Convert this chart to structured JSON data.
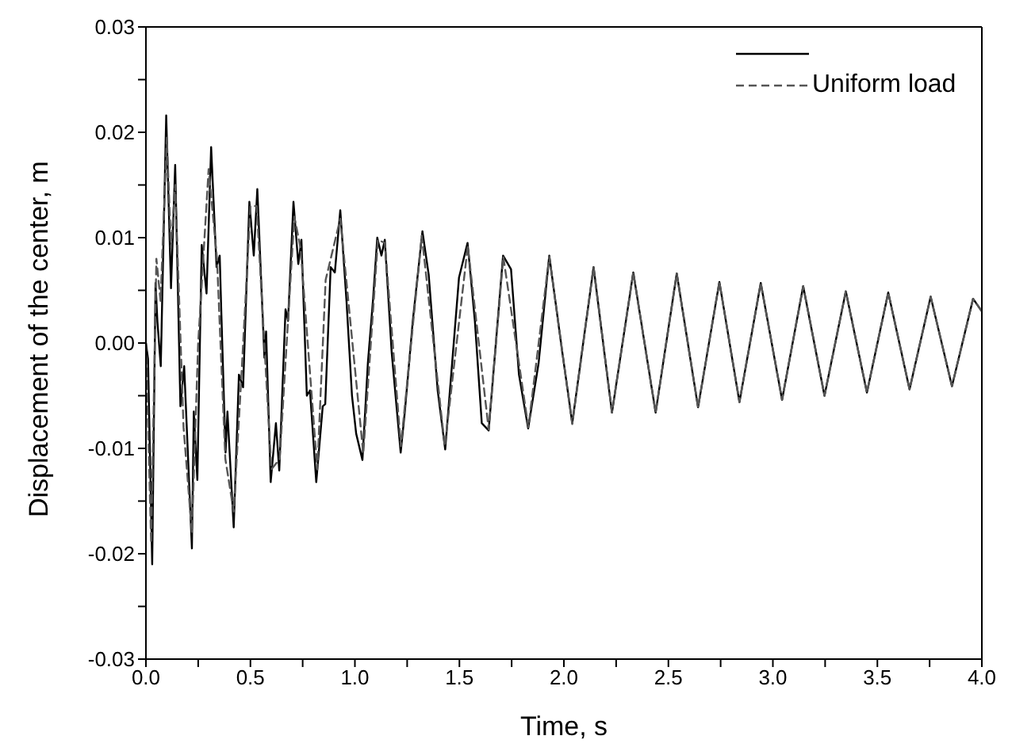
{
  "chart_data": {
    "type": "line",
    "xlabel": "Time, s",
    "ylabel": "Displacement of the center, m",
    "xlim": [
      0,
      4
    ],
    "ylim": [
      -0.03,
      0.03
    ],
    "xticks": [
      {
        "value": 0,
        "label": "0.0"
      },
      {
        "value": 0.25,
        "label": null
      },
      {
        "value": 0.5,
        "label": "0.5"
      },
      {
        "value": 0.75,
        "label": null
      },
      {
        "value": 1,
        "label": "1.0"
      },
      {
        "value": 1.25,
        "label": null
      },
      {
        "value": 1.5,
        "label": "1.5"
      },
      {
        "value": 1.75,
        "label": null
      },
      {
        "value": 2,
        "label": "2.0"
      },
      {
        "value": 2.25,
        "label": null
      },
      {
        "value": 2.5,
        "label": "2.5"
      },
      {
        "value": 2.75,
        "label": null
      },
      {
        "value": 3,
        "label": "3.0"
      },
      {
        "value": 3.25,
        "label": null
      },
      {
        "value": 3.5,
        "label": "3.5"
      },
      {
        "value": 3.75,
        "label": null
      },
      {
        "value": 4,
        "label": "4.0"
      }
    ],
    "yticks": [
      {
        "value": -0.03,
        "label": "-0.03"
      },
      {
        "value": -0.025,
        "label": null
      },
      {
        "value": -0.02,
        "label": "-0.02"
      },
      {
        "value": -0.015,
        "label": null
      },
      {
        "value": -0.01,
        "label": "-0.01"
      },
      {
        "value": -0.005,
        "label": null
      },
      {
        "value": 0,
        "label": "0.00"
      },
      {
        "value": 0.005,
        "label": null
      },
      {
        "value": 0.01,
        "label": "0.01"
      },
      {
        "value": 0.015,
        "label": null
      },
      {
        "value": 0.02,
        "label": "0.02"
      },
      {
        "value": 0.025,
        "label": null
      },
      {
        "value": 0.03,
        "label": "0.03"
      }
    ],
    "grid": false,
    "legend": "top right",
    "marker": "none",
    "series": [
      {
        "color": "#000000",
        "line_style": "solid",
        "x": [
          0,
          0.01,
          0.03,
          0.046,
          0.055,
          0.071,
          0.097,
          0.12,
          0.14,
          0.165,
          0.183,
          0.22,
          0.229,
          0.246,
          0.267,
          0.29,
          0.312,
          0.338,
          0.353,
          0.36,
          0.381,
          0.39,
          0.42,
          0.445,
          0.465,
          0.495,
          0.516,
          0.533,
          0.567,
          0.575,
          0.597,
          0.622,
          0.638,
          0.668,
          0.68,
          0.706,
          0.729,
          0.744,
          0.77,
          0.785,
          0.815,
          0.846,
          0.858,
          0.884,
          0.904,
          0.93,
          0.96,
          0.986,
          1.006,
          1.036,
          1.062,
          1.087,
          1.107,
          1.127,
          1.143,
          1.176,
          1.219,
          1.239,
          1.277,
          1.323,
          1.353,
          1.396,
          1.432,
          1.498,
          1.539,
          1.574,
          1.607,
          1.64,
          1.709,
          1.747,
          1.785,
          1.829,
          1.879,
          1.93,
          1.989,
          2.04,
          2.142,
          2.23,
          2.332,
          2.439,
          2.54,
          2.642,
          2.744,
          2.84,
          2.942,
          3.044,
          3.145,
          3.247,
          3.349,
          3.45,
          3.552,
          3.654,
          3.755,
          3.857,
          3.958,
          4.0
        ],
        "values": [
          0,
          -0.0015,
          -0.021,
          0.0057,
          0.002,
          -0.0022,
          0.0216,
          0.0052,
          0.0169,
          -0.006,
          -0.0022,
          -0.0195,
          -0.0065,
          -0.013,
          0.0093,
          0.0047,
          0.0186,
          0.0072,
          0.0083,
          0.0034,
          -0.0104,
          -0.0065,
          -0.0175,
          -0.003,
          -0.0042,
          0.0134,
          0.0083,
          0.0146,
          -0.0014,
          0.0011,
          -0.0132,
          -0.0076,
          -0.0121,
          0.0032,
          0.0021,
          0.0134,
          0.0075,
          0.0098,
          -0.005,
          -0.0045,
          -0.0132,
          -0.006,
          -0.0058,
          0.0072,
          0.0067,
          0.0126,
          0.0039,
          -0.005,
          -0.0086,
          -0.0111,
          -0.0019,
          0.0042,
          0.01,
          0.0083,
          0.0098,
          -0.0009,
          -0.0104,
          -0.0065,
          0.0021,
          0.0106,
          0.0065,
          -0.0045,
          -0.0101,
          0.0062,
          0.0095,
          0.0021,
          -0.0076,
          -0.0083,
          0.0083,
          0.007,
          -0.003,
          -0.0081,
          -0.0019,
          0.0083,
          -0.0004,
          -0.0076,
          0.0072,
          -0.0066,
          0.0067,
          -0.0066,
          0.0066,
          -0.0061,
          0.0058,
          -0.0056,
          0.0057,
          -0.0054,
          0.0054,
          -0.005,
          0.0049,
          -0.0047,
          0.0048,
          -0.0044,
          0.0044,
          -0.0041,
          0.0042,
          0.003
        ]
      },
      {
        "name": "Uniform load",
        "color": "#555555",
        "line_style": "dashed",
        "x": [
          0,
          0.025,
          0.05,
          0.07,
          0.1,
          0.12,
          0.14,
          0.18,
          0.22,
          0.25,
          0.3,
          0.34,
          0.38,
          0.42,
          0.46,
          0.5,
          0.53,
          0.6,
          0.64,
          0.71,
          0.74,
          0.82,
          0.86,
          0.93,
          1.04,
          1.11,
          1.143,
          1.22,
          1.32,
          1.43,
          1.54,
          1.64,
          1.71,
          1.83,
          1.93,
          2.04,
          2.142,
          2.23,
          2.332,
          2.439,
          2.54,
          2.642,
          2.744,
          2.84,
          2.942,
          3.044,
          3.145,
          3.247,
          3.349,
          3.45,
          3.552,
          3.654,
          3.755,
          3.857,
          3.958,
          4.0
        ],
        "values": [
          0,
          -0.019,
          0.008,
          0.004,
          0.0195,
          0.009,
          0.015,
          -0.008,
          -0.018,
          0,
          0.0165,
          0.008,
          -0.011,
          -0.016,
          -0.002,
          0.013,
          0.013,
          -0.012,
          -0.011,
          0.012,
          0.009,
          -0.012,
          0.006,
          0.0118,
          -0.0105,
          0.0098,
          0.0095,
          -0.0098,
          0.0102,
          -0.0098,
          0.0092,
          -0.0082,
          0.0082,
          -0.008,
          0.0082,
          -0.0077,
          0.0072,
          -0.0066,
          0.0067,
          -0.0066,
          0.0066,
          -0.0061,
          0.0058,
          -0.0056,
          0.0057,
          -0.0054,
          0.0054,
          -0.005,
          0.0049,
          -0.0047,
          0.0048,
          -0.0044,
          0.0044,
          -0.0041,
          0.0042,
          0.003
        ]
      }
    ]
  }
}
